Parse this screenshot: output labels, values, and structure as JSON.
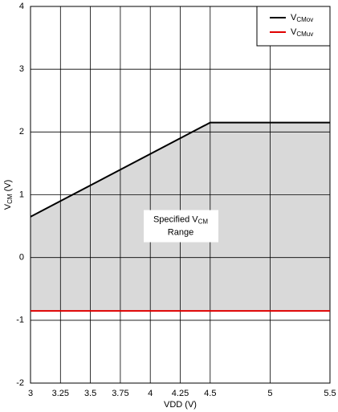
{
  "chart_data": {
    "type": "line",
    "x": [
      3,
      4.5,
      5.5
    ],
    "series": [
      {
        "name": "VCMov",
        "color": "#000000",
        "values": [
          0.65,
          2.15,
          2.15
        ]
      },
      {
        "name": "VCMuv",
        "color": "#e00000",
        "values": [
          -0.85,
          -0.85,
          -0.85
        ]
      }
    ],
    "xlabel": "VDD (V)",
    "ylabel": "VCM (V)",
    "annotation": [
      "Specified VCM",
      "Range"
    ],
    "xlim": [
      3,
      5.5
    ],
    "xticks": [
      3,
      3.25,
      3.5,
      3.75,
      4,
      4.25,
      4.5,
      5,
      5.5
    ],
    "ylim": [
      -2,
      4
    ],
    "yticks": [
      -2,
      -1,
      0,
      1,
      2,
      3,
      4
    ],
    "grid": true,
    "legend": "upper right",
    "fill_between": "#d9d9d9"
  }
}
